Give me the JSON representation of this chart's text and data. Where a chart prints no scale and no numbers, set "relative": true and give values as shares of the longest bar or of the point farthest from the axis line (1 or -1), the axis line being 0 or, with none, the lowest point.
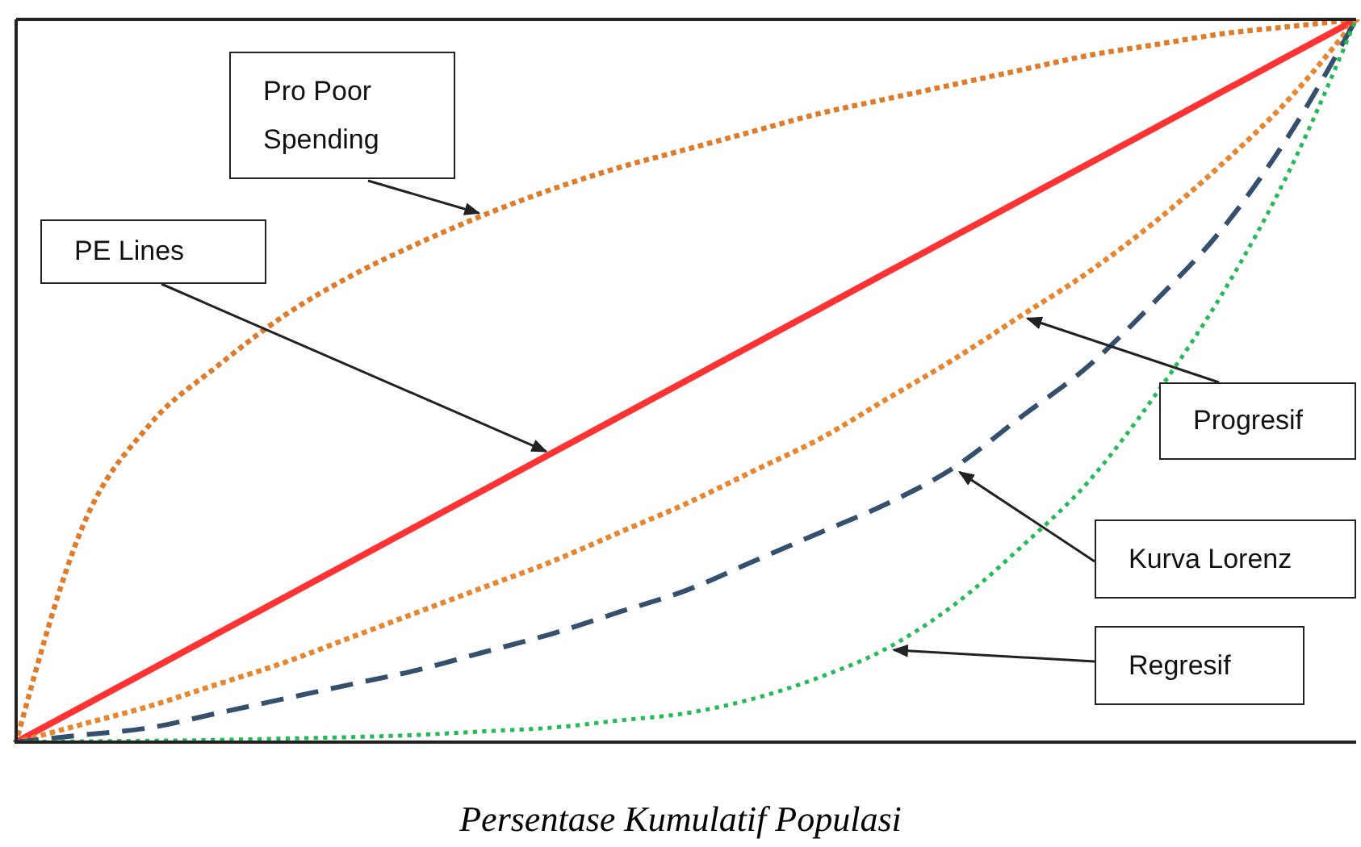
{
  "chart_data": {
    "type": "line",
    "relative": true,
    "xlabel": "Persentase Kumulatif Populasi",
    "legend": false,
    "grid": false,
    "annotations": [
      "Pro Poor Spending",
      "PE Lines",
      "Progresif",
      "Kurva Lorenz",
      "Regresif"
    ],
    "categories": [
      null,
      null,
      null,
      null,
      null,
      null,
      null,
      null,
      null,
      null,
      null,
      null,
      null,
      null,
      null,
      null,
      null,
      null,
      null,
      null,
      null
    ],
    "series": [
      {
        "color": "#e07b2a",
        "line_style": "dotted",
        "values": [
          0,
          0.3,
          0.44,
          0.52,
          0.59,
          0.645,
          0.69,
          0.73,
          0.765,
          0.795,
          0.82,
          0.845,
          0.87,
          0.89,
          0.91,
          0.93,
          0.95,
          0.965,
          0.98,
          0.99,
          1
        ]
      },
      {
        "color": "#ff3333",
        "line_style": "solid",
        "values": [
          0,
          0.05,
          0.1,
          0.15,
          0.2,
          0.25,
          0.3,
          0.35,
          0.4,
          0.45,
          0.5,
          0.55,
          0.6,
          0.65,
          0.7,
          0.75,
          0.8,
          0.85,
          0.9,
          0.95,
          1
        ]
      },
      {
        "color": "#e8852f",
        "line_style": "dotted",
        "values": [
          0,
          0.025,
          0.05,
          0.08,
          0.11,
          0.145,
          0.18,
          0.215,
          0.25,
          0.29,
          0.33,
          0.375,
          0.42,
          0.475,
          0.53,
          0.59,
          0.65,
          0.72,
          0.8,
          0.89,
          1
        ]
      },
      {
        "color": "#34506e",
        "line_style": "dashed",
        "values": [
          0,
          0.01,
          0.02,
          0.04,
          0.06,
          0.08,
          0.1,
          0.125,
          0.15,
          0.18,
          0.21,
          0.25,
          0.29,
          0.33,
          0.38,
          0.45,
          0.52,
          0.61,
          0.71,
          0.84,
          1
        ]
      },
      {
        "color": "#22bb55",
        "line_style": "dotted",
        "values": [
          0,
          0.001,
          0.002,
          0.003,
          0.005,
          0.007,
          0.01,
          0.015,
          0.02,
          0.03,
          0.04,
          0.06,
          0.09,
          0.13,
          0.19,
          0.27,
          0.36,
          0.48,
          0.62,
          0.79,
          1
        ]
      }
    ]
  }
}
